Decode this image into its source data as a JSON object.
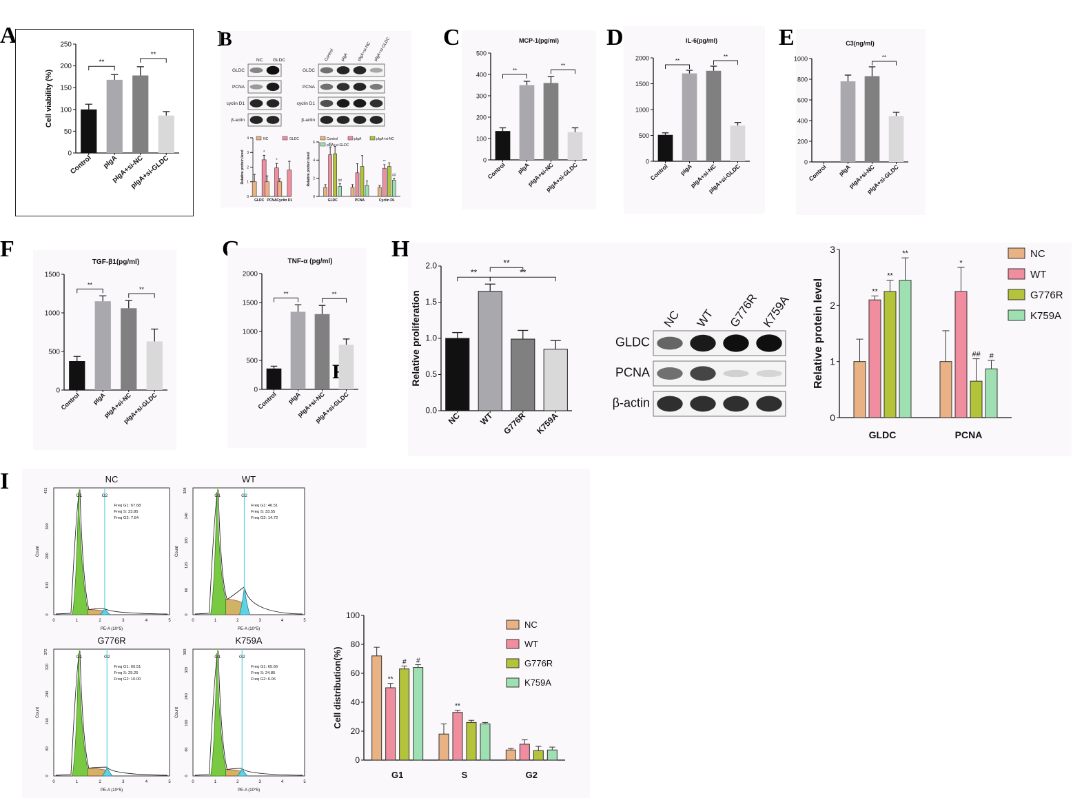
{
  "panel_letters": [
    "A",
    "B",
    "C",
    "D",
    "E",
    "F",
    "G",
    "H",
    "I"
  ],
  "stray_letters": {
    "b_blot": "B",
    "g_overlay": "F"
  },
  "colors": {
    "black": "#111111",
    "grey_light": "#a9a9ad",
    "grey_mid": "#808080",
    "grey_pale": "#d9d9d9",
    "nc": "#e8b285",
    "wt": "#f08ea0",
    "g776r": "#b3c33a",
    "k759a": "#9fe0b3"
  },
  "chart_data": [
    {
      "id": "A",
      "type": "bar",
      "ylabel": "Cell viability (%)",
      "categories": [
        "Control",
        "pIgA",
        "pIgA+si-NC",
        "pIgA+si-GLDC"
      ],
      "values": [
        100,
        168,
        178,
        86
      ],
      "errors": [
        12,
        12,
        20,
        9
      ],
      "ylim": [
        0,
        250
      ],
      "yticks": [
        0,
        50,
        100,
        150,
        200,
        250
      ],
      "sig": [
        {
          "from": 0,
          "to": 1,
          "label": "**"
        },
        {
          "from": 2,
          "to": 3,
          "label": "**"
        }
      ]
    },
    {
      "id": "C",
      "type": "bar",
      "title": "MCP-1(pg/ml)",
      "categories": [
        "Control",
        "pIgA",
        "pIgA+si-NC",
        "pIgA+si-GLDC"
      ],
      "values": [
        135,
        350,
        360,
        130
      ],
      "errors": [
        15,
        18,
        30,
        20
      ],
      "ylim": [
        0,
        500
      ],
      "yticks": [
        0,
        100,
        200,
        300,
        400,
        500
      ],
      "sig": [
        {
          "from": 0,
          "to": 1,
          "label": "**"
        },
        {
          "from": 2,
          "to": 3,
          "label": "**"
        }
      ]
    },
    {
      "id": "D",
      "type": "bar",
      "title": "IL-6(pg/ml)",
      "categories": [
        "Control",
        "pIgA",
        "pIgA+si-NC",
        "pIgA+si-GLDC"
      ],
      "values": [
        510,
        1700,
        1750,
        690
      ],
      "errors": [
        40,
        60,
        90,
        60
      ],
      "ylim": [
        0,
        2000
      ],
      "yticks": [
        0,
        500,
        1000,
        1500,
        2000
      ],
      "sig": [
        {
          "from": 0,
          "to": 1,
          "label": "**"
        },
        {
          "from": 2,
          "to": 3,
          "label": "**"
        }
      ]
    },
    {
      "id": "E",
      "type": "bar",
      "title": "C3(ng/ml)",
      "categories": [
        "Control",
        "pIgA",
        "pIgA+si-NC",
        "pIgA+si-GLDC"
      ],
      "values": [
        0,
        780,
        830,
        445
      ],
      "errors": [
        0,
        60,
        90,
        35
      ],
      "ylim": [
        0,
        1000
      ],
      "yticks": [
        0,
        200,
        400,
        600,
        800,
        1000
      ],
      "sig": [
        {
          "from": 2,
          "to": 3,
          "label": "**"
        }
      ]
    },
    {
      "id": "F",
      "type": "bar",
      "title": "TGF-β1(pg/ml)",
      "categories": [
        "Control",
        "pIgA",
        "pIgA+si-NC",
        "pIgA+si-GLDC"
      ],
      "values": [
        375,
        1150,
        1060,
        630
      ],
      "errors": [
        60,
        70,
        100,
        160
      ],
      "ylim": [
        0,
        1500
      ],
      "yticks": [
        0,
        500,
        1000,
        1500
      ],
      "sig": [
        {
          "from": 0,
          "to": 1,
          "label": "**"
        },
        {
          "from": 2,
          "to": 3,
          "label": "**"
        }
      ]
    },
    {
      "id": "G",
      "type": "bar",
      "title": "TNF-α (pg/ml)",
      "categories": [
        "Control",
        "pIgA",
        "pIgA+si-NC",
        "pIgA+si-GLDC"
      ],
      "values": [
        360,
        1340,
        1300,
        770
      ],
      "errors": [
        40,
        120,
        150,
        100
      ],
      "ylim": [
        0,
        2000
      ],
      "yticks": [
        0,
        500,
        1000,
        1500,
        2000
      ],
      "sig": [
        {
          "from": 0,
          "to": 1,
          "label": "**"
        },
        {
          "from": 2,
          "to": 3,
          "label": "**"
        }
      ]
    },
    {
      "id": "H1",
      "type": "bar",
      "ylabel": "Relative proliferation",
      "categories": [
        "NC",
        "WT",
        "G776R",
        "K759A"
      ],
      "values": [
        1.0,
        1.65,
        0.99,
        0.85
      ],
      "errors": [
        0.08,
        0.1,
        0.12,
        0.12
      ],
      "ylim": [
        0,
        2.0
      ],
      "yticks": [
        "0.0",
        "0.5",
        "1.0",
        "1.5",
        "2.0"
      ],
      "sig": [
        {
          "from": 0,
          "to": 1,
          "label": "**",
          "level": 1
        },
        {
          "from": 1,
          "to": 3,
          "label": "**",
          "level": 1
        },
        {
          "from": 1,
          "to": 2,
          "label": "**",
          "level": 2
        }
      ]
    },
    {
      "id": "H2",
      "type": "bar",
      "ylabel": "Relative protein level",
      "categories": [
        "GLDC",
        "PCNA"
      ],
      "series": [
        {
          "name": "NC",
          "values": [
            1.0,
            1.0
          ],
          "errors": [
            0.4,
            0.55
          ],
          "marks": [
            "",
            ""
          ]
        },
        {
          "name": "WT",
          "values": [
            2.1,
            2.25
          ],
          "errors": [
            0.07,
            0.43
          ],
          "marks": [
            "**",
            "*"
          ]
        },
        {
          "name": "G776R",
          "values": [
            2.25,
            0.65
          ],
          "errors": [
            0.2,
            0.4
          ],
          "marks": [
            "**",
            "##"
          ]
        },
        {
          "name": "K759A",
          "values": [
            2.45,
            0.87
          ],
          "errors": [
            0.4,
            0.15
          ],
          "marks": [
            "**",
            "#"
          ]
        }
      ],
      "ylim": [
        0,
        3
      ],
      "yticks": [
        "0",
        "1",
        "2",
        "3"
      ]
    },
    {
      "id": "I2",
      "type": "bar",
      "ylabel": "Cell distribution(%)",
      "categories": [
        "G1",
        "S",
        "G2"
      ],
      "series": [
        {
          "name": "NC",
          "values": [
            72,
            18,
            7
          ],
          "errors": [
            6,
            7,
            1
          ],
          "marks": [
            "",
            "",
            ""
          ]
        },
        {
          "name": "WT",
          "values": [
            50,
            33,
            11
          ],
          "errors": [
            3,
            1.5,
            3
          ],
          "marks": [
            "**",
            "**",
            ""
          ]
        },
        {
          "name": "G776R",
          "values": [
            63,
            26,
            6.5
          ],
          "errors": [
            2,
            1.5,
            3
          ],
          "marks": [
            "#",
            "",
            ""
          ]
        },
        {
          "name": "K759A",
          "values": [
            64,
            25,
            7
          ],
          "errors": [
            2,
            1,
            2
          ],
          "marks": [
            "#",
            "",
            ""
          ]
        }
      ],
      "ylim": [
        0,
        100
      ],
      "yticks": [
        "0",
        "20",
        "40",
        "60",
        "80",
        "100"
      ]
    },
    {
      "id": "B_left",
      "type": "bar",
      "ylabel": "Relative protein level",
      "categories": [
        "GLDC",
        "PCNA",
        "Cyclin D1"
      ],
      "series": [
        {
          "name": "NC",
          "values": [
            1.0,
            1.0,
            1.0
          ],
          "errors": [
            0.5,
            0.4,
            0.2
          ],
          "marks": [
            "",
            "",
            ""
          ]
        },
        {
          "name": "GLDC",
          "values": [
            2.5,
            1.95,
            1.8
          ],
          "errors": [
            0.3,
            0.3,
            0.6
          ],
          "marks": [
            "*",
            "*",
            ""
          ]
        }
      ],
      "ylim": [
        0,
        4
      ],
      "yticks": [
        "0",
        "1",
        "2",
        "3",
        "4"
      ]
    },
    {
      "id": "B_right",
      "type": "bar",
      "ylabel": "Relative protein level",
      "categories": [
        "GLDC",
        "PCNA",
        "Cyclin D1"
      ],
      "series": [
        {
          "name": "Control",
          "values": [
            1.0,
            1.0,
            1.0
          ],
          "errors": [
            0.3,
            0.3,
            0.2
          ],
          "marks": [
            "",
            "",
            ""
          ]
        },
        {
          "name": "pIgA",
          "values": [
            4.6,
            2.6,
            3.1
          ],
          "errors": [
            0.8,
            1.0,
            0.4
          ],
          "marks": [
            "**",
            "",
            "**"
          ]
        },
        {
          "name": "pIgA+si-NC",
          "values": [
            4.7,
            3.3,
            3.3
          ],
          "errors": [
            0.8,
            1.2,
            0.4
          ],
          "marks": [
            "",
            "",
            ""
          ]
        },
        {
          "name": "pIgA+si-GLDC",
          "values": [
            1.1,
            1.2,
            1.8
          ],
          "errors": [
            0.3,
            0.5,
            0.2
          ],
          "marks": [
            "##",
            "",
            "##"
          ]
        }
      ],
      "ylim": [
        0,
        6
      ],
      "yticks": [
        "0",
        "2",
        "4",
        "6"
      ]
    },
    {
      "id": "I_flow",
      "type": "histogram",
      "xlabel": "PE-A (10^5)",
      "ylabel": "Count",
      "xticks": [
        "0",
        "1",
        "2",
        "3",
        "4",
        "5"
      ],
      "panels": [
        {
          "name": "NC",
          "ymax": "431",
          "yticks": [
            "0",
            "100",
            "200",
            "300"
          ],
          "g1_pos": 1.1,
          "g2_pos": 2.2,
          "stats": [
            "Freq G1: 67.68",
            "Freq S: 23.85",
            "Freq G2: 7.54"
          ],
          "g2_height": 0.05,
          "s_height": 0.04
        },
        {
          "name": "WT",
          "ymax": "308",
          "yticks": [
            "0",
            "60",
            "120",
            "180",
            "240"
          ],
          "g1_pos": 1.1,
          "g2_pos": 2.3,
          "stats": [
            "Freq G1: 46.51",
            "Freq S: 33.55",
            "Freq G2: 14.72"
          ],
          "g2_height": 0.22,
          "s_height": 0.12
        },
        {
          "name": "G776R",
          "ymax": "372",
          "yticks": [
            "0",
            "80",
            "160",
            "240",
            "320"
          ],
          "g1_pos": 1.1,
          "g2_pos": 2.3,
          "stats": [
            "Freq G1: 60.51",
            "Freq S: 25.25",
            "Freq G2: 10.00"
          ],
          "g2_height": 0.07,
          "s_height": 0.06
        },
        {
          "name": "K759A",
          "ymax": "383",
          "yticks": [
            "0",
            "80",
            "160",
            "240",
            "320"
          ],
          "g1_pos": 1.1,
          "g2_pos": 2.2,
          "stats": [
            "Freq G1: 65.66",
            "Freq S: 24.85",
            "Freq G2: 6.06"
          ],
          "g2_height": 0.06,
          "s_height": 0.05
        }
      ],
      "gate_labels": [
        "G1",
        "G2"
      ]
    }
  ],
  "blots": {
    "B_left": {
      "lanes": [
        "NC",
        "GLDC"
      ],
      "rows": [
        "GLDC",
        "PCNA",
        "cyclin D1",
        "β-actin"
      ],
      "intensity": [
        [
          0.45,
          1.0
        ],
        [
          0.35,
          0.95
        ],
        [
          0.9,
          0.9
        ],
        [
          0.9,
          0.9
        ]
      ]
    },
    "B_right": {
      "lanes": [
        "Control",
        "pIgA",
        "pIgA+si-NC",
        "pIgA+si-GLDC"
      ],
      "rows": [
        "GLDC",
        "PCNA",
        "cyclin D1",
        "β-actin"
      ],
      "intensity": [
        [
          0.55,
          0.9,
          0.9,
          0.3
        ],
        [
          0.55,
          0.85,
          0.9,
          0.5
        ],
        [
          0.7,
          0.95,
          0.95,
          0.85
        ],
        [
          0.9,
          0.9,
          0.9,
          0.9
        ]
      ]
    },
    "H": {
      "lanes": [
        "NC",
        "WT",
        "G776R",
        "K759A"
      ],
      "rows": [
        "GLDC",
        "PCNA",
        "β-actin"
      ],
      "intensity": [
        [
          0.6,
          0.95,
          1.0,
          1.0
        ],
        [
          0.55,
          0.75,
          0.1,
          0.08
        ],
        [
          0.85,
          0.85,
          0.85,
          0.85
        ]
      ]
    }
  }
}
